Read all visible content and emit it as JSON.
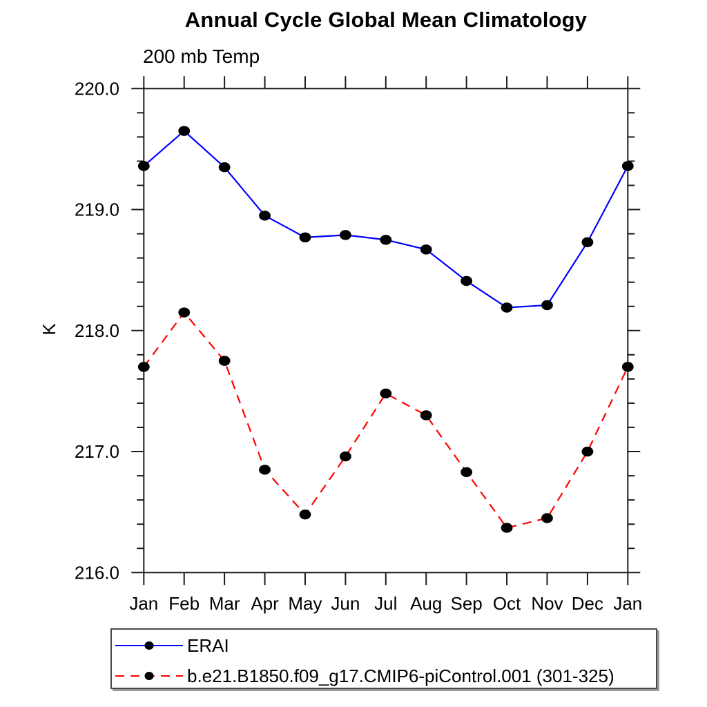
{
  "page": {
    "background": "#ffffff"
  },
  "header": {
    "title": "Annual Cycle Global Mean Climatology",
    "subtitle": "200 mb Temp"
  },
  "axes": {
    "y_label": "K",
    "ytick_labels": [
      "216.0",
      "217.0",
      "218.0",
      "219.0",
      "220.0"
    ],
    "xtick_labels": [
      "Jan",
      "Feb",
      "Mar",
      "Apr",
      "May",
      "Jun",
      "Jul",
      "Aug",
      "Sep",
      "Oct",
      "Nov",
      "Dec",
      "Jan"
    ]
  },
  "colors": {
    "axis": "#1a1a1a",
    "marker": "#000000",
    "series_blue": "#0000ff",
    "series_red": "#ff0000"
  },
  "chart_data": {
    "type": "line",
    "title": "Annual Cycle Global Mean Climatology",
    "subtitle": "200 mb Temp",
    "xlabel": "",
    "ylabel": "K",
    "categories": [
      "Jan",
      "Feb",
      "Mar",
      "Apr",
      "May",
      "Jun",
      "Jul",
      "Aug",
      "Sep",
      "Oct",
      "Nov",
      "Dec",
      "Jan"
    ],
    "series": [
      {
        "name": "ERAI",
        "color": "#0000ff",
        "line_style": "solid",
        "marker": "filled-circle",
        "marker_color": "#000000",
        "values": [
          219.36,
          219.65,
          219.35,
          218.95,
          218.77,
          218.79,
          218.75,
          218.67,
          218.41,
          218.19,
          218.21,
          218.73,
          219.36
        ]
      },
      {
        "name": "b.e21.B1850.f09_g17.CMIP6-piControl.001 (301-325)",
        "color": "#ff0000",
        "line_style": "dashed",
        "marker": "filled-circle",
        "marker_color": "#000000",
        "values": [
          217.7,
          218.15,
          217.75,
          216.85,
          216.48,
          216.96,
          217.48,
          217.3,
          216.83,
          216.37,
          216.45,
          217.0,
          217.7
        ]
      }
    ],
    "ylim": [
      216.0,
      220.0
    ],
    "yticks_major": [
      216.0,
      217.0,
      218.0,
      219.0,
      220.0
    ],
    "ytick_minor_step": 0.2,
    "grid": false,
    "legend_position": "bottom-left-box"
  }
}
